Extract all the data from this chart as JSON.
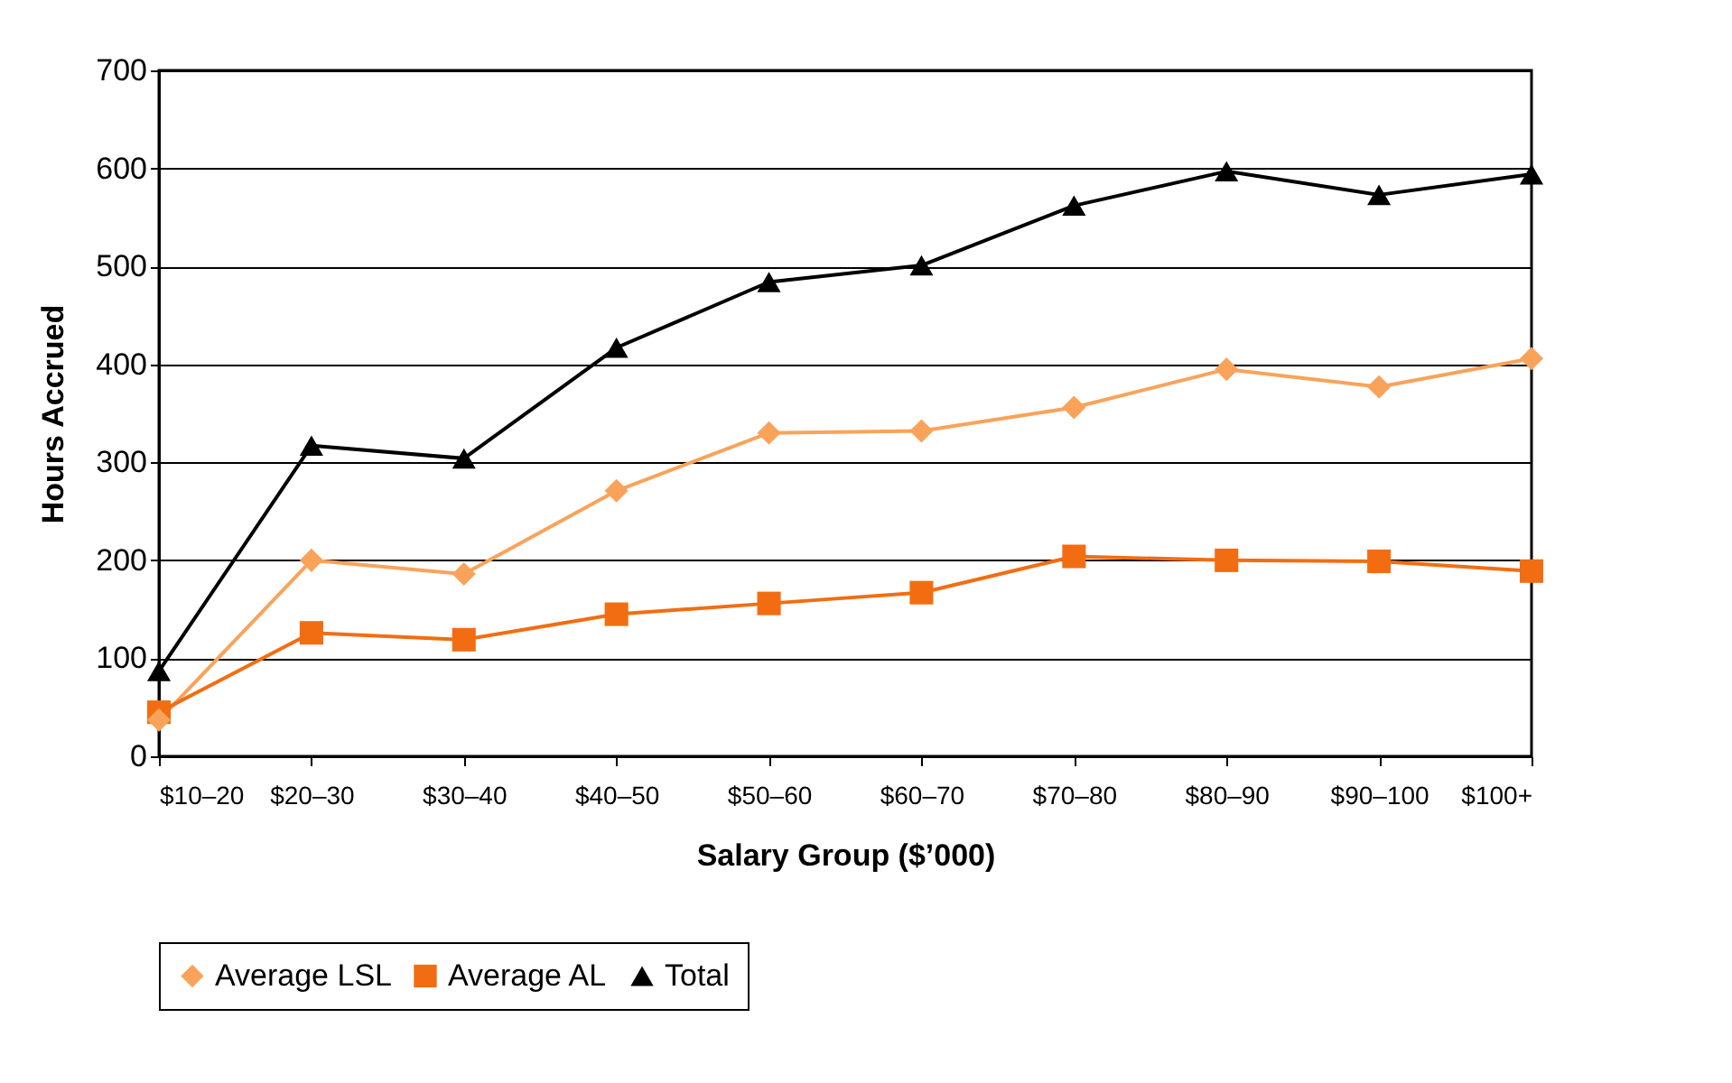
{
  "chart_data": {
    "type": "line",
    "xlabel": "Salary Group ($’000)",
    "ylabel": "Hours Accrued",
    "categories": [
      "$10–20",
      "$20–30",
      "$30–40",
      "$40–50",
      "$50–60",
      "$60–70",
      "$70–80",
      "$80–90",
      "$90–100",
      "$100+"
    ],
    "series": [
      {
        "name": "Average LSL",
        "color": "#f9a35a",
        "marker": "diamond",
        "values": [
          37,
          200,
          186,
          271,
          330,
          332,
          356,
          395,
          377,
          406
        ]
      },
      {
        "name": "Average AL",
        "color": "#f26d12",
        "marker": "square",
        "values": [
          45,
          126,
          119,
          145,
          156,
          167,
          204,
          200,
          199,
          189
        ]
      },
      {
        "name": "Total",
        "color": "#000000",
        "marker": "triangle",
        "values": [
          87,
          317,
          304,
          417,
          484,
          501,
          562,
          597,
          573,
          594
        ]
      }
    ],
    "ylim": [
      0,
      700
    ],
    "yticks": [
      0,
      100,
      200,
      300,
      400,
      500,
      600,
      700
    ],
    "grid": "y",
    "legend": "bottom",
    "line_style": "solid"
  }
}
